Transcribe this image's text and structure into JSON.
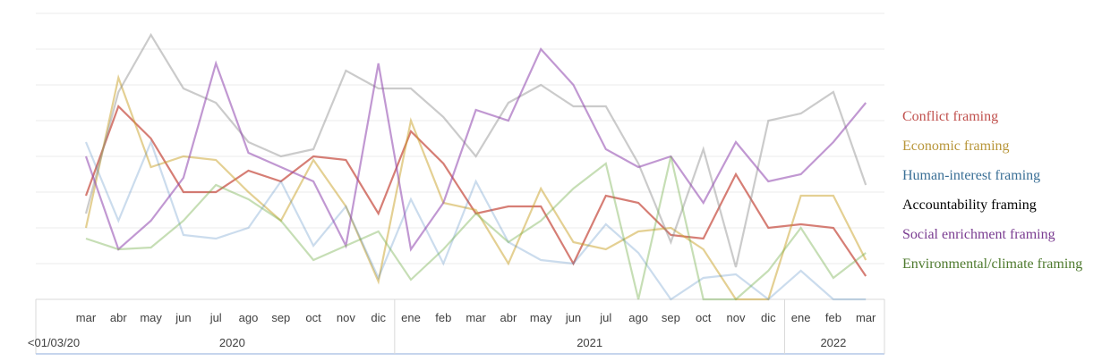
{
  "chart_data": {
    "type": "line",
    "legend_position": "right",
    "grid": true,
    "ylim": [
      0,
      8
    ],
    "pre_label": "<01/03/20",
    "categories": [
      "mar",
      "abr",
      "may",
      "jun",
      "jul",
      "ago",
      "sep",
      "oct",
      "nov",
      "dic",
      "ene",
      "feb",
      "mar",
      "abr",
      "may",
      "jun",
      "jul",
      "ago",
      "sep",
      "oct",
      "nov",
      "dic",
      "ene",
      "feb",
      "mar"
    ],
    "years": [
      {
        "label": "2020",
        "start": 0,
        "end": 9
      },
      {
        "label": "2021",
        "start": 10,
        "end": 21
      },
      {
        "label": "2022",
        "start": 22,
        "end": 24
      }
    ],
    "series": [
      {
        "name": "Conflict framing",
        "color": "#C0392B",
        "opacity": 0.65,
        "values": [
          2.9,
          5.4,
          4.5,
          3.0,
          3.0,
          3.6,
          3.3,
          4.0,
          3.9,
          2.4,
          4.7,
          3.8,
          2.4,
          2.6,
          2.6,
          1.0,
          2.9,
          2.7,
          1.8,
          1.7,
          3.5,
          2.0,
          2.1,
          2.0,
          0.65
        ]
      },
      {
        "name": "Economic framing",
        "color": "#C9A227",
        "opacity": 0.5,
        "values": [
          2.0,
          6.2,
          3.7,
          4.0,
          3.9,
          3.0,
          2.2,
          3.9,
          2.6,
          0.5,
          5.0,
          2.7,
          2.5,
          1.0,
          3.1,
          1.6,
          1.4,
          1.9,
          2.0,
          1.4,
          0.0,
          0.0,
          2.9,
          2.9,
          1.1
        ]
      },
      {
        "name": "Human-interest framing",
        "color": "#2E75B6",
        "opacity": 0.25,
        "values": [
          4.4,
          2.2,
          4.4,
          1.8,
          1.7,
          2.0,
          3.3,
          1.5,
          2.6,
          0.6,
          2.8,
          1.0,
          3.3,
          1.6,
          1.1,
          1.0,
          2.1,
          1.3,
          0.0,
          0.6,
          0.7,
          0.0,
          0.8,
          0.0,
          0.0
        ]
      },
      {
        "name": "Accountability framing",
        "color": "#8C8C8C",
        "opacity": 0.45,
        "values": [
          2.4,
          5.8,
          7.4,
          5.9,
          5.5,
          4.4,
          4.0,
          4.2,
          6.4,
          5.9,
          5.9,
          5.1,
          4.0,
          5.5,
          6.0,
          5.4,
          5.4,
          3.8,
          1.6,
          4.2,
          0.9,
          5.0,
          5.2,
          5.8,
          3.2
        ]
      },
      {
        "name": "Social enrichment framing",
        "color": "#8E44AD",
        "opacity": 0.55,
        "values": [
          4.0,
          1.4,
          2.2,
          3.4,
          6.6,
          4.1,
          3.7,
          3.3,
          1.5,
          6.6,
          1.4,
          2.7,
          5.3,
          5.0,
          7.0,
          6.0,
          4.2,
          3.7,
          4.0,
          2.7,
          4.4,
          3.3,
          3.5,
          4.4,
          5.5
        ]
      },
      {
        "name": "Environmental/climate framing",
        "color": "#70AD47",
        "opacity": 0.4,
        "values": [
          1.7,
          1.4,
          1.45,
          2.2,
          3.2,
          2.8,
          2.2,
          1.1,
          1.5,
          1.9,
          0.55,
          1.4,
          2.4,
          1.6,
          2.2,
          3.1,
          3.8,
          0.0,
          4.0,
          0.0,
          0.0,
          0.8,
          2.0,
          0.6,
          1.3
        ]
      }
    ]
  },
  "legend_colors": [
    "#C0504D",
    "#B8963A",
    "#3A6F96",
    "#000000",
    "#7A3C91",
    "#4E7A2E"
  ]
}
